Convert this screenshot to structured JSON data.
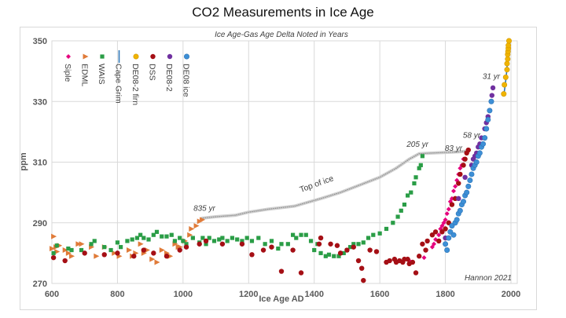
{
  "chart_data": {
    "type": "scatter",
    "title": "CO2 Measurements in Ice Age",
    "subtitle": "Ice Age-Gas Age Delta Noted in Years",
    "xlabel": "Ice Age AD",
    "ylabel": "ppm",
    "xlim": [
      600,
      2000
    ],
    "ylim": [
      270,
      350
    ],
    "xticks": [
      600,
      800,
      1000,
      1200,
      1400,
      1600,
      1800,
      2000
    ],
    "yticks": [
      270,
      290,
      310,
      330,
      350
    ],
    "grid": true,
    "legend_position": "top-left",
    "credit": "Hannon 2021",
    "annotations": [
      {
        "text": "835 yr",
        "x": 1065,
        "y": 294
      },
      {
        "text": "205 yr",
        "x": 1715,
        "y": 315
      },
      {
        "text": "83 yr",
        "x": 1825,
        "y": 313.8
      },
      {
        "text": "58 yr",
        "x": 1880,
        "y": 318
      },
      {
        "text": "31 yr",
        "x": 1940,
        "y": 337.5
      },
      {
        "text": "Top of ice",
        "x": 1410,
        "y": 302
      }
    ],
    "series": [
      {
        "name": "Siple",
        "marker": "diamond",
        "color": "#e6007e",
        "points": [
          [
            1690,
            277.5
          ],
          [
            1700,
            277
          ],
          [
            1735,
            278.5
          ],
          [
            1760,
            282
          ],
          [
            1765,
            283
          ],
          [
            1770,
            284.5
          ],
          [
            1780,
            286
          ],
          [
            1785,
            288
          ],
          [
            1790,
            289
          ],
          [
            1795,
            290
          ],
          [
            1800,
            291
          ],
          [
            1805,
            293
          ],
          [
            1810,
            294.5
          ],
          [
            1815,
            297
          ],
          [
            1820,
            298
          ],
          [
            1825,
            300.5
          ],
          [
            1830,
            302
          ],
          [
            1835,
            304
          ],
          [
            1840,
            306
          ],
          [
            1845,
            308
          ],
          [
            1850,
            309
          ],
          [
            1855,
            311
          ]
        ]
      },
      {
        "name": "EDML",
        "marker": "triangle-right",
        "color": "#e07b39",
        "points": [
          [
            600,
            281.5
          ],
          [
            605,
            285.5
          ],
          [
            612,
            282
          ],
          [
            615,
            280.5
          ],
          [
            622,
            282.5
          ],
          [
            640,
            281
          ],
          [
            650,
            280
          ],
          [
            660,
            279
          ],
          [
            680,
            283
          ],
          [
            690,
            283
          ],
          [
            720,
            282
          ],
          [
            735,
            279
          ],
          [
            760,
            282
          ],
          [
            790,
            280
          ],
          [
            805,
            279
          ],
          [
            835,
            281
          ],
          [
            845,
            279
          ],
          [
            855,
            280
          ],
          [
            870,
            283
          ],
          [
            880,
            280
          ],
          [
            890,
            281
          ],
          [
            905,
            278
          ],
          [
            920,
            277
          ],
          [
            935,
            281
          ],
          [
            950,
            280
          ],
          [
            960,
            279
          ],
          [
            975,
            283
          ],
          [
            985,
            282
          ],
          [
            990,
            282
          ],
          [
            1005,
            284
          ],
          [
            1020,
            286
          ],
          [
            1025,
            288
          ],
          [
            1040,
            289
          ],
          [
            1050,
            290.5
          ],
          [
            1058,
            291
          ]
        ]
      },
      {
        "name": "WAIS",
        "marker": "square",
        "color": "#2a9d46",
        "points": [
          [
            605,
            280
          ],
          [
            615,
            282.5
          ],
          [
            650,
            281.5
          ],
          [
            660,
            281
          ],
          [
            690,
            281
          ],
          [
            720,
            283
          ],
          [
            730,
            284
          ],
          [
            760,
            282
          ],
          [
            780,
            281
          ],
          [
            800,
            283.5
          ],
          [
            810,
            282
          ],
          [
            830,
            284
          ],
          [
            845,
            284.5
          ],
          [
            860,
            285
          ],
          [
            870,
            286
          ],
          [
            880,
            285
          ],
          [
            895,
            284.5
          ],
          [
            910,
            286
          ],
          [
            920,
            287
          ],
          [
            935,
            285.5
          ],
          [
            950,
            285.5
          ],
          [
            965,
            286
          ],
          [
            975,
            284
          ],
          [
            990,
            285
          ],
          [
            1000,
            284
          ],
          [
            1010,
            283
          ],
          [
            1030,
            285
          ],
          [
            1050,
            283.5
          ],
          [
            1060,
            285
          ],
          [
            1070,
            283
          ],
          [
            1080,
            285
          ],
          [
            1095,
            284
          ],
          [
            1110,
            284.5
          ],
          [
            1120,
            285
          ],
          [
            1135,
            284
          ],
          [
            1150,
            285
          ],
          [
            1165,
            284.5
          ],
          [
            1180,
            284
          ],
          [
            1195,
            285
          ],
          [
            1210,
            284
          ],
          [
            1230,
            285
          ],
          [
            1250,
            283
          ],
          [
            1270,
            284
          ],
          [
            1290,
            281.5
          ],
          [
            1300,
            283
          ],
          [
            1320,
            283
          ],
          [
            1335,
            286
          ],
          [
            1345,
            285
          ],
          [
            1360,
            286
          ],
          [
            1375,
            286
          ],
          [
            1390,
            284
          ],
          [
            1400,
            281
          ],
          [
            1410,
            283
          ],
          [
            1420,
            280
          ],
          [
            1435,
            279
          ],
          [
            1445,
            279.5
          ],
          [
            1460,
            279
          ],
          [
            1475,
            279
          ],
          [
            1490,
            280
          ],
          [
            1500,
            281
          ],
          [
            1510,
            282
          ],
          [
            1520,
            283
          ],
          [
            1535,
            283
          ],
          [
            1550,
            283.5
          ],
          [
            1565,
            285
          ],
          [
            1580,
            286
          ],
          [
            1600,
            286.5
          ],
          [
            1620,
            288
          ],
          [
            1640,
            290
          ],
          [
            1655,
            292
          ],
          [
            1665,
            294
          ],
          [
            1675,
            296
          ],
          [
            1685,
            299
          ],
          [
            1695,
            300
          ],
          [
            1705,
            303
          ],
          [
            1710,
            305
          ],
          [
            1720,
            308
          ],
          [
            1725,
            309
          ],
          [
            1730,
            312
          ]
        ]
      },
      {
        "name": "Cape Grim",
        "marker": "line",
        "color": "#2e75b6",
        "points": [
          [
            1978,
            332
          ],
          [
            1982,
            335
          ],
          [
            1986,
            339
          ],
          [
            1990,
            344
          ],
          [
            1994,
            348
          ],
          [
            1998,
            350
          ]
        ]
      },
      {
        "name": "DE08-2 firn",
        "marker": "circle",
        "color": "#f0b400",
        "points": [
          [
            1978,
            332.5
          ],
          [
            1980,
            335.5
          ],
          [
            1984,
            338
          ],
          [
            1988,
            340.5
          ],
          [
            1988,
            342.5
          ],
          [
            1990,
            344
          ],
          [
            1990,
            345.5
          ],
          [
            1991,
            346.5
          ],
          [
            1992,
            347.5
          ],
          [
            1992,
            348.5
          ],
          [
            1994,
            350
          ]
        ]
      },
      {
        "name": "DSS",
        "marker": "circle",
        "color": "#a50f15",
        "points": [
          [
            605,
            278.5
          ],
          [
            640,
            277.5
          ],
          [
            700,
            280
          ],
          [
            760,
            279.5
          ],
          [
            800,
            280
          ],
          [
            850,
            279
          ],
          [
            880,
            281
          ],
          [
            910,
            280
          ],
          [
            950,
            279
          ],
          [
            990,
            281
          ],
          [
            1010,
            282
          ],
          [
            1050,
            283
          ],
          [
            1070,
            284
          ],
          [
            1120,
            283
          ],
          [
            1180,
            283
          ],
          [
            1210,
            279.5
          ],
          [
            1245,
            281
          ],
          [
            1270,
            282
          ],
          [
            1300,
            274
          ],
          [
            1335,
            281
          ],
          [
            1360,
            273.5
          ],
          [
            1415,
            283
          ],
          [
            1420,
            285
          ],
          [
            1450,
            283
          ],
          [
            1470,
            282.5
          ],
          [
            1480,
            280
          ],
          [
            1500,
            281
          ],
          [
            1520,
            282
          ],
          [
            1535,
            277.5
          ],
          [
            1545,
            275
          ],
          [
            1550,
            271
          ],
          [
            1570,
            281
          ],
          [
            1590,
            280.5
          ],
          [
            1620,
            277
          ],
          [
            1630,
            277.5
          ],
          [
            1645,
            278
          ],
          [
            1650,
            277
          ],
          [
            1660,
            277.5
          ],
          [
            1670,
            277
          ],
          [
            1675,
            278
          ],
          [
            1685,
            278
          ],
          [
            1690,
            276.5
          ],
          [
            1700,
            277
          ],
          [
            1710,
            273.5
          ],
          [
            1720,
            279
          ],
          [
            1730,
            283
          ],
          [
            1740,
            281
          ],
          [
            1745,
            284
          ],
          [
            1760,
            286
          ],
          [
            1770,
            287
          ],
          [
            1780,
            284
          ],
          [
            1790,
            287
          ],
          [
            1800,
            288
          ],
          [
            1810,
            290
          ],
          [
            1820,
            296
          ],
          [
            1830,
            298
          ],
          [
            1840,
            303
          ],
          [
            1845,
            306
          ],
          [
            1855,
            309
          ],
          [
            1860,
            311
          ],
          [
            1865,
            313
          ],
          [
            1870,
            314
          ]
        ]
      },
      {
        "name": "DE08-2",
        "marker": "circle",
        "color": "#7030a0",
        "points": [
          [
            1800,
            285
          ],
          [
            1840,
            298
          ],
          [
            1860,
            305
          ],
          [
            1880,
            309
          ],
          [
            1885,
            311
          ],
          [
            1890,
            312
          ],
          [
            1895,
            313
          ],
          [
            1900,
            315
          ],
          [
            1905,
            316
          ],
          [
            1910,
            318
          ],
          [
            1920,
            321
          ],
          [
            1925,
            323
          ],
          [
            1930,
            325
          ],
          [
            1935,
            327
          ],
          [
            1940,
            330
          ],
          [
            1942,
            332
          ],
          [
            1945,
            334.5
          ]
        ]
      },
      {
        "name": "DE08 ice",
        "marker": "circle",
        "color": "#3d8fd6",
        "points": [
          [
            1800,
            283
          ],
          [
            1805,
            281
          ],
          [
            1810,
            285
          ],
          [
            1815,
            287
          ],
          [
            1820,
            289
          ],
          [
            1825,
            286
          ],
          [
            1830,
            290
          ],
          [
            1835,
            291
          ],
          [
            1840,
            293
          ],
          [
            1845,
            294
          ],
          [
            1850,
            296
          ],
          [
            1855,
            297
          ],
          [
            1860,
            299
          ],
          [
            1865,
            300
          ],
          [
            1870,
            302
          ],
          [
            1875,
            304
          ],
          [
            1880,
            306
          ],
          [
            1885,
            308
          ],
          [
            1890,
            309
          ],
          [
            1895,
            310
          ],
          [
            1900,
            312
          ],
          [
            1905,
            313
          ],
          [
            1910,
            315
          ],
          [
            1915,
            316
          ],
          [
            1920,
            318
          ],
          [
            1925,
            321
          ],
          [
            1930,
            324
          ],
          [
            1935,
            327
          ],
          [
            1940,
            330
          ]
        ]
      }
    ],
    "top_of_ice": {
      "name": "Top of ice",
      "color": "#a6a6a6",
      "points": [
        [
          1055,
          291.5
        ],
        [
          1100,
          292
        ],
        [
          1160,
          292.5
        ],
        [
          1200,
          293.5
        ],
        [
          1260,
          294.5
        ],
        [
          1340,
          295.5
        ],
        [
          1420,
          298
        ],
        [
          1480,
          300
        ],
        [
          1540,
          302.5
        ],
        [
          1600,
          305
        ],
        [
          1650,
          308
        ],
        [
          1690,
          311
        ],
        [
          1720,
          312.8
        ],
        [
          1760,
          313
        ],
        [
          1800,
          313.2
        ],
        [
          1840,
          313.4
        ],
        [
          1870,
          313.7
        ]
      ]
    }
  }
}
